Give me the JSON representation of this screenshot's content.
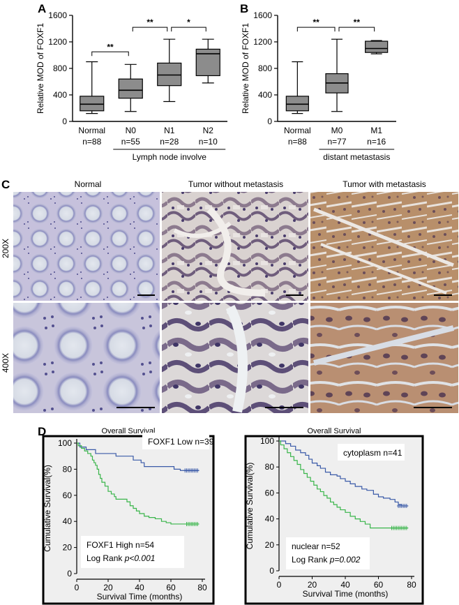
{
  "panels": {
    "A": "A",
    "B": "B",
    "C": "C",
    "D": "D"
  },
  "colors": {
    "box_fill": "#8c8c8c",
    "km_low": "#3a5aa8",
    "km_high": "#39b54a",
    "plot_bg": "#efefef"
  },
  "chart_data": [
    {
      "id": "A",
      "type": "box",
      "ylabel": "Relative MOD  of FOXF1",
      "ylim": [
        0,
        1600
      ],
      "yticks": [
        0,
        400,
        800,
        1200,
        1600
      ],
      "categories": [
        {
          "name": "Normal",
          "n": "n=88"
        },
        {
          "name": "N0",
          "n": "n=55"
        },
        {
          "name": "N1",
          "n": "n=28"
        },
        {
          "name": "N2",
          "n": "n=10"
        }
      ],
      "boxes": [
        {
          "min": 120,
          "q1": 160,
          "median": 260,
          "q3": 380,
          "max": 900
        },
        {
          "min": 150,
          "q1": 350,
          "median": 470,
          "q3": 640,
          "max": 860
        },
        {
          "min": 300,
          "q1": 540,
          "median": 700,
          "q3": 880,
          "max": 1240
        },
        {
          "min": 580,
          "q1": 690,
          "median": 1020,
          "q3": 1090,
          "max": 1240
        }
      ],
      "group_label": "Lymph node involve",
      "significance": [
        {
          "from": 0,
          "to": 1,
          "label": "**",
          "y": 1050
        },
        {
          "from": 1,
          "to": 2,
          "label": "**",
          "y": 1420
        },
        {
          "from": 2,
          "to": 3,
          "label": "*",
          "y": 1420
        }
      ]
    },
    {
      "id": "B",
      "type": "box",
      "ylabel": "Relative MOD of FOXF1",
      "ylim": [
        0,
        1600
      ],
      "yticks": [
        0,
        400,
        800,
        1200,
        1600
      ],
      "categories": [
        {
          "name": "Normal",
          "n": "n=88"
        },
        {
          "name": "M0",
          "n": "n=77"
        },
        {
          "name": "M1",
          "n": "n=16"
        }
      ],
      "boxes": [
        {
          "min": 120,
          "q1": 160,
          "median": 260,
          "q3": 380,
          "max": 900
        },
        {
          "min": 150,
          "q1": 430,
          "median": 580,
          "q3": 720,
          "max": 1240
        },
        {
          "min": 1020,
          "q1": 1040,
          "median": 1100,
          "q3": 1210,
          "max": 1220
        }
      ],
      "group_label": "distant metastasis",
      "significance": [
        {
          "from": 0,
          "to": 1,
          "label": "**",
          "y": 1420
        },
        {
          "from": 1,
          "to": 2,
          "label": "**",
          "y": 1420
        }
      ]
    },
    {
      "id": "D1",
      "type": "line",
      "title": "Overall Survival",
      "xlabel": "Survival Time (months)",
      "ylabel": "Cumulative Survival(%)",
      "xlim": [
        0,
        80
      ],
      "ylim": [
        0,
        100
      ],
      "xticks": [
        0,
        20,
        40,
        60,
        80
      ],
      "yticks": [
        0,
        20,
        40,
        60,
        80,
        100
      ],
      "series": [
        {
          "name": "FOXF1 Low n=39",
          "color": "#3a5aa8",
          "steps": [
            [
              0,
              100
            ],
            [
              2,
              97
            ],
            [
              6,
              95
            ],
            [
              11,
              95
            ],
            [
              12,
              92
            ],
            [
              22,
              92
            ],
            [
              25,
              90
            ],
            [
              33,
              90
            ],
            [
              36,
              87
            ],
            [
              40,
              87
            ],
            [
              41,
              85
            ],
            [
              43,
              82
            ],
            [
              61,
              82
            ],
            [
              62,
              80
            ],
            [
              64,
              80
            ],
            [
              66,
              79
            ],
            [
              78,
              79
            ]
          ],
          "censor": [
            69,
            70,
            71,
            72,
            73,
            74,
            75,
            76,
            77
          ]
        },
        {
          "name": "FOXF1 High  n=54",
          "color": "#39b54a",
          "steps": [
            [
              0,
              100
            ],
            [
              1,
              98
            ],
            [
              3,
              96
            ],
            [
              5,
              94
            ],
            [
              7,
              92
            ],
            [
              9,
              90
            ],
            [
              10,
              87
            ],
            [
              11,
              85
            ],
            [
              12,
              83
            ],
            [
              13,
              80
            ],
            [
              14,
              76
            ],
            [
              15,
              73
            ],
            [
              16,
              70
            ],
            [
              18,
              67
            ],
            [
              20,
              63
            ],
            [
              22,
              61
            ],
            [
              24,
              59
            ],
            [
              25,
              57
            ],
            [
              30,
              57
            ],
            [
              32,
              55
            ],
            [
              34,
              52
            ],
            [
              36,
              50
            ],
            [
              38,
              48
            ],
            [
              40,
              46
            ],
            [
              43,
              44
            ],
            [
              46,
              43
            ],
            [
              50,
              42
            ],
            [
              54,
              40
            ],
            [
              57,
              39
            ],
            [
              60,
              38
            ],
            [
              78,
              38
            ]
          ],
          "censor": [
            70,
            71,
            72,
            73,
            74,
            75,
            76,
            77
          ]
        }
      ],
      "legend_low": "FOXF1 Low n=39",
      "legend_high": "FOXF1 High  n=54",
      "stat_prefix": "Log Rank ",
      "stat_value": "p<0.001"
    },
    {
      "id": "D2",
      "type": "line",
      "title": "Overall Survival",
      "xlabel": "Survival Time (months)",
      "ylabel": "Cumulative Survival(%)",
      "xlim": [
        0,
        80
      ],
      "ylim": [
        0,
        100
      ],
      "xticks": [
        0,
        20,
        40,
        60,
        80
      ],
      "yticks": [
        0,
        20,
        40,
        60,
        80,
        100
      ],
      "series": [
        {
          "name": "cytoplasm n=41",
          "color": "#3a5aa8",
          "steps": [
            [
              0,
              100
            ],
            [
              4,
              98
            ],
            [
              7,
              96
            ],
            [
              10,
              93
            ],
            [
              13,
              91
            ],
            [
              16,
              89
            ],
            [
              18,
              86
            ],
            [
              20,
              83
            ],
            [
              23,
              81
            ],
            [
              25,
              79
            ],
            [
              28,
              76
            ],
            [
              31,
              74
            ],
            [
              35,
              73
            ],
            [
              37,
              71
            ],
            [
              40,
              69
            ],
            [
              43,
              67
            ],
            [
              46,
              65
            ],
            [
              50,
              63
            ],
            [
              53,
              62
            ],
            [
              57,
              59
            ],
            [
              60,
              57
            ],
            [
              63,
              56
            ],
            [
              67,
              55
            ],
            [
              70,
              53
            ],
            [
              72,
              51
            ],
            [
              74,
              50
            ],
            [
              78,
              50
            ]
          ],
          "censor": [
            72,
            73,
            74,
            75,
            76,
            77
          ]
        },
        {
          "name": "nuclear n=52",
          "color": "#39b54a",
          "steps": [
            [
              0,
              100
            ],
            [
              1,
              97
            ],
            [
              3,
              94
            ],
            [
              5,
              91
            ],
            [
              7,
              88
            ],
            [
              9,
              85
            ],
            [
              11,
              82
            ],
            [
              13,
              78
            ],
            [
              15,
              75
            ],
            [
              17,
              72
            ],
            [
              19,
              69
            ],
            [
              21,
              66
            ],
            [
              23,
              63
            ],
            [
              25,
              61
            ],
            [
              27,
              58
            ],
            [
              29,
              56
            ],
            [
              31,
              53
            ],
            [
              33,
              51
            ],
            [
              35,
              49
            ],
            [
              37,
              47
            ],
            [
              40,
              45
            ],
            [
              43,
              42
            ],
            [
              46,
              40
            ],
            [
              49,
              38
            ],
            [
              52,
              36
            ],
            [
              55,
              33
            ],
            [
              60,
              33
            ],
            [
              78,
              33
            ]
          ],
          "censor": [
            68,
            69,
            70,
            71,
            72,
            73,
            74,
            75,
            76,
            77
          ]
        }
      ],
      "legend_low": "cytoplasm n=41",
      "legend_high": "nuclear n=52",
      "stat_prefix": "Log Rank ",
      "stat_value": "p=0.002"
    }
  ],
  "micro": {
    "col_titles": [
      "Normal",
      "Tumor without metastasis",
      "Tumor with metastasis"
    ],
    "row_labels": [
      "200X",
      "400X"
    ]
  }
}
